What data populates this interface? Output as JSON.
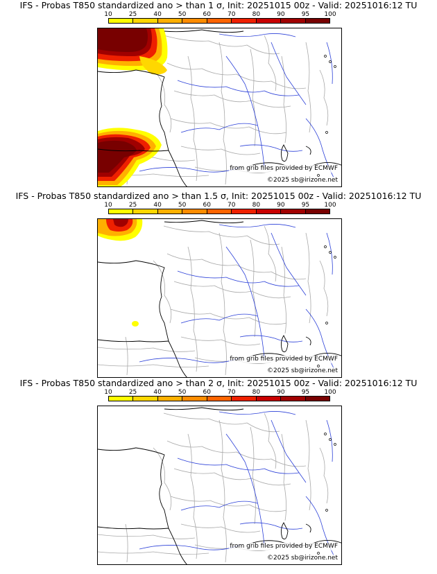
{
  "panels": [
    {
      "title": "IFS - Probas T850  standardized ano > than 1 σ, Init: 20251015 00z - Valid: 20251016:12 TU"
    },
    {
      "title": "IFS - Probas T850  standardized ano > than 1.5 σ, Init: 20251015 00z - Valid: 20251016:12 TU"
    },
    {
      "title": "IFS - Probas T850  standardized ano > than 2 σ, Init: 20251015 00z - Valid: 20251016:12 TU"
    }
  ],
  "legend": {
    "ticks": [
      "10",
      "25",
      "40",
      "50",
      "60",
      "70",
      "80",
      "90",
      "95",
      "100"
    ],
    "colors": [
      "#ffff00",
      "#ffd700",
      "#ffb000",
      "#ff8c00",
      "#ff6400",
      "#ee2000",
      "#c80000",
      "#a00000",
      "#780000"
    ]
  },
  "credit": "from grib files provided by ECMWF",
  "copyright": "©2025 sb@irizone.net"
}
